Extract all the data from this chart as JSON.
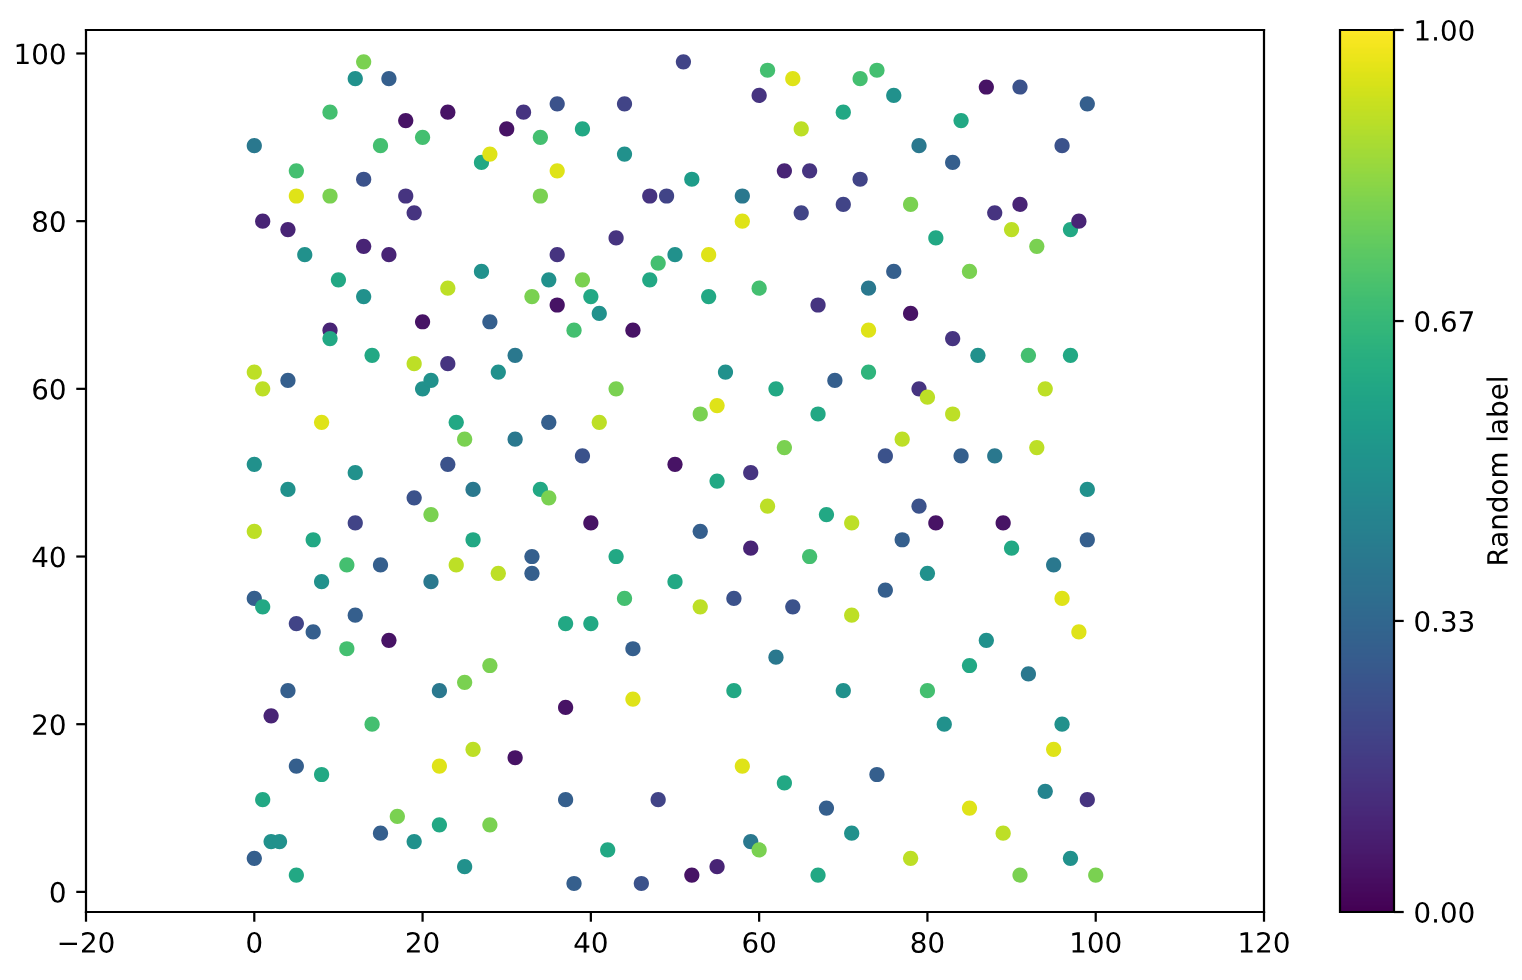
{
  "chart_data": {
    "type": "scatter",
    "clabel": "Random label",
    "xlim": [
      -20,
      120
    ],
    "ylim": [
      -2.4,
      102.8
    ],
    "xticks": [
      {
        "value": -20,
        "label": "−20"
      },
      0,
      20,
      40,
      60,
      80,
      100,
      120
    ],
    "yticks": [
      0,
      20,
      40,
      60,
      80,
      100
    ],
    "clim": [
      0,
      1
    ],
    "cticks": [
      {
        "value": 0,
        "label": "0.00"
      },
      {
        "value": 0.33,
        "label": "0.33"
      },
      {
        "value": 0.67,
        "label": "0.67"
      },
      {
        "value": 1,
        "label": "1.00"
      }
    ],
    "grid": false,
    "legend": false,
    "x": [
      0,
      0,
      1,
      0,
      0,
      0,
      0,
      1,
      1,
      1,
      2,
      2,
      3,
      4,
      4,
      4,
      4,
      5,
      5,
      5,
      5,
      5,
      6,
      7,
      7,
      8,
      8,
      8,
      9,
      9,
      9,
      9,
      10,
      11,
      11,
      12,
      12,
      12,
      12,
      13,
      13,
      13,
      13,
      14,
      14,
      15,
      15,
      15,
      16,
      16,
      16,
      17,
      18,
      18,
      19,
      19,
      19,
      19,
      20,
      20,
      20,
      21,
      21,
      21,
      22,
      22,
      22,
      23,
      23,
      23,
      23,
      24,
      24,
      25,
      25,
      25,
      26,
      26,
      26,
      27,
      27,
      28,
      28,
      28,
      28,
      29,
      29,
      30,
      31,
      31,
      31,
      32,
      33,
      33,
      33,
      34,
      34,
      34,
      35,
      35,
      35,
      36,
      36,
      36,
      36,
      37,
      37,
      37,
      38,
      38,
      39,
      39,
      39,
      40,
      40,
      40,
      41,
      41,
      42,
      43,
      43,
      43,
      44,
      44,
      44,
      45,
      45,
      45,
      46,
      47,
      47,
      48,
      48,
      49,
      50,
      50,
      50,
      51,
      52,
      52,
      53,
      53,
      53,
      54,
      54,
      55,
      55,
      55,
      56,
      57,
      57,
      58,
      58,
      58,
      59,
      59,
      59,
      60,
      60,
      60,
      61,
      61,
      62,
      62,
      63,
      63,
      63,
      64,
      64,
      65,
      65,
      66,
      66,
      67,
      67,
      67,
      68,
      68,
      69,
      70,
      70,
      70,
      71,
      71,
      71,
      72,
      72,
      73,
      73,
      73,
      74,
      74,
      75,
      75,
      76,
      76,
      77,
      77,
      78,
      78,
      78,
      79,
      79,
      79,
      80,
      80,
      80,
      81,
      81,
      82,
      83,
      83,
      83,
      84,
      84,
      85,
      85,
      85,
      86,
      87,
      87,
      88,
      88,
      89,
      89,
      90,
      90,
      91,
      91,
      91,
      92,
      92,
      93,
      93,
      94,
      95,
      95,
      96,
      96,
      97,
      97,
      97,
      98,
      98,
      99,
      99,
      99,
      99,
      100,
      96,
      94
    ],
    "values": [
      89,
      62,
      80,
      51,
      43,
      35,
      4,
      60,
      34,
      11,
      21,
      6,
      6,
      79,
      61,
      48,
      24,
      2,
      86,
      83,
      32,
      15,
      76,
      42,
      31,
      56,
      37,
      14,
      93,
      83,
      67,
      66,
      73,
      29,
      39,
      97,
      50,
      44,
      33,
      99,
      85,
      77,
      71,
      64,
      20,
      89,
      39,
      7,
      97,
      76,
      30,
      9,
      92,
      83,
      81,
      47,
      63,
      6,
      90,
      68,
      60,
      61,
      37,
      45,
      24,
      15,
      8,
      93,
      72,
      63,
      51,
      56,
      39,
      54,
      25,
      3,
      17,
      42,
      48,
      87,
      74,
      88,
      68,
      27,
      8,
      38,
      62,
      91,
      64,
      54,
      16,
      93,
      71,
      38,
      40,
      83,
      90,
      48,
      47,
      73,
      56,
      94,
      86,
      76,
      70,
      32,
      22,
      11,
      1,
      67,
      91,
      73,
      52,
      71,
      32,
      44,
      69,
      56,
      5,
      78,
      60,
      40,
      94,
      88,
      35,
      67,
      23,
      29,
      1,
      83,
      73,
      75,
      11,
      83,
      76,
      51,
      37,
      99,
      85,
      2,
      57,
      43,
      34,
      71,
      76,
      58,
      49,
      3,
      62,
      35,
      24,
      80,
      83,
      15,
      41,
      50,
      6,
      95,
      72,
      5,
      46,
      98,
      60,
      28,
      86,
      53,
      13,
      97,
      34,
      91,
      81,
      86,
      40,
      70,
      57,
      2,
      45,
      10,
      61,
      93,
      82,
      24,
      33,
      44,
      7,
      97,
      85,
      72,
      62,
      67,
      98,
      14,
      52,
      36,
      95,
      74,
      42,
      54,
      82,
      69,
      4,
      89,
      60,
      46,
      59,
      24,
      38,
      78,
      44,
      20,
      87,
      66,
      57,
      92,
      52,
      74,
      10,
      27,
      64,
      96,
      30,
      81,
      52,
      44,
      7,
      79,
      41,
      96,
      82,
      2,
      64,
      26,
      77,
      53,
      60,
      39,
      17,
      89,
      35,
      64,
      79,
      4,
      31,
      80,
      42,
      11,
      48,
      94,
      2,
      20,
      12
    ],
    "cvalues": [
      0.4,
      0.9,
      0.1,
      0.5,
      0.9,
      0.3,
      0.3,
      0.9,
      0.6,
      0.6,
      0.1,
      0.5,
      0.5,
      0.1,
      0.3,
      0.5,
      0.3,
      0.6,
      0.7,
      0.95,
      0.2,
      0.3,
      0.5,
      0.6,
      0.3,
      0.95,
      0.5,
      0.6,
      0.7,
      0.8,
      0.1,
      0.6,
      0.6,
      0.7,
      0.7,
      0.5,
      0.5,
      0.2,
      0.3,
      0.8,
      0.25,
      0.1,
      0.5,
      0.6,
      0.7,
      0.7,
      0.3,
      0.3,
      0.3,
      0.1,
      0.05,
      0.8,
      0.05,
      0.15,
      0.15,
      0.25,
      0.9,
      0.5,
      0.7,
      0.05,
      0.5,
      0.5,
      0.4,
      0.8,
      0.4,
      0.95,
      0.6,
      0.05,
      0.9,
      0.15,
      0.25,
      0.6,
      0.9,
      0.8,
      0.8,
      0.5,
      0.9,
      0.6,
      0.4,
      0.6,
      0.5,
      0.95,
      0.3,
      0.8,
      0.8,
      0.9,
      0.5,
      0.05,
      0.4,
      0.4,
      0.05,
      0.15,
      0.8,
      0.3,
      0.3,
      0.8,
      0.7,
      0.6,
      0.8,
      0.5,
      0.3,
      0.25,
      0.95,
      0.15,
      0.05,
      0.6,
      0.05,
      0.3,
      0.3,
      0.7,
      0.6,
      0.8,
      0.25,
      0.6,
      0.6,
      0.05,
      0.5,
      0.9,
      0.6,
      0.15,
      0.8,
      0.6,
      0.2,
      0.5,
      0.7,
      0.05,
      0.95,
      0.3,
      0.25,
      0.15,
      0.6,
      0.7,
      0.2,
      0.2,
      0.5,
      0.05,
      0.6,
      0.2,
      0.55,
      0.05,
      0.8,
      0.3,
      0.9,
      0.6,
      0.95,
      0.95,
      0.6,
      0.1,
      0.5,
      0.25,
      0.6,
      0.95,
      0.4,
      0.95,
      0.1,
      0.15,
      0.4,
      0.15,
      0.7,
      0.8,
      0.9,
      0.7,
      0.6,
      0.4,
      0.1,
      0.8,
      0.6,
      0.95,
      0.25,
      0.9,
      0.2,
      0.15,
      0.7,
      0.15,
      0.6,
      0.6,
      0.6,
      0.3,
      0.3,
      0.6,
      0.2,
      0.5,
      0.9,
      0.9,
      0.5,
      0.7,
      0.2,
      0.4,
      0.65,
      0.95,
      0.7,
      0.3,
      0.25,
      0.3,
      0.5,
      0.3,
      0.3,
      0.9,
      0.8,
      0.05,
      0.9,
      0.4,
      0.15,
      0.25,
      0.9,
      0.7,
      0.5,
      0.6,
      0.05,
      0.5,
      0.3,
      0.15,
      0.9,
      0.6,
      0.3,
      0.8,
      0.95,
      0.6,
      0.5,
      0.05,
      0.5,
      0.15,
      0.4,
      0.05,
      0.9,
      0.9,
      0.6,
      0.25,
      0.1,
      0.8,
      0.7,
      0.4,
      0.8,
      0.9,
      0.9,
      0.4,
      0.95,
      0.25,
      0.95,
      0.6,
      0.6,
      0.5,
      0.95,
      0.1,
      0.3,
      0.15,
      0.5,
      0.3,
      0.8,
      0.5,
      0.45
    ]
  }
}
